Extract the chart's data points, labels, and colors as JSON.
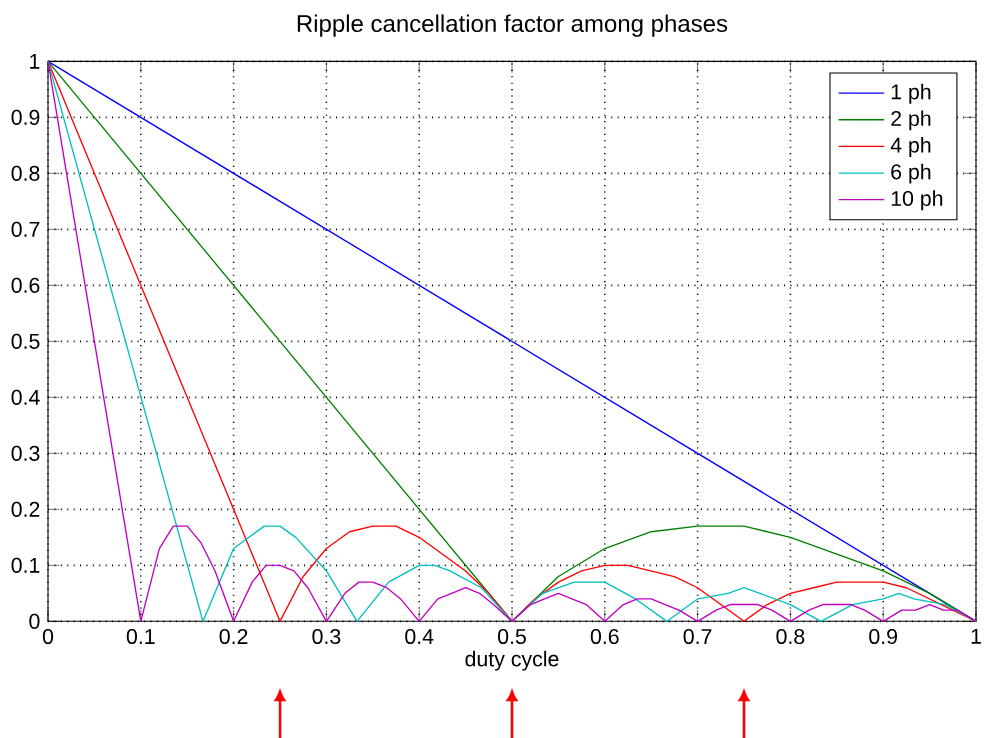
{
  "chart_data": {
    "type": "line",
    "title": "Ripple cancellation factor among phases",
    "xlabel": "duty cycle",
    "xlim": [
      0,
      1
    ],
    "ylim": [
      0,
      1
    ],
    "xticks": [
      0,
      0.1,
      0.2,
      0.3,
      0.4,
      0.5,
      0.6,
      0.7,
      0.8,
      0.9,
      1
    ],
    "yticks": [
      0,
      0.1,
      0.2,
      0.3,
      0.4,
      0.5,
      0.6,
      0.7,
      0.8,
      0.9,
      1
    ],
    "grid": true,
    "legend": "top right",
    "marker": "none",
    "line_style": "solid",
    "series": [
      {
        "name": "1 ph",
        "color": "#0000ff",
        "x": [
          0,
          1
        ],
        "values": [
          1,
          0
        ]
      },
      {
        "name": "2 ph",
        "color": "#008000",
        "x": [
          0,
          0.5,
          0.55,
          0.6,
          0.65,
          0.7,
          0.75,
          0.8,
          0.85,
          0.9,
          0.95,
          1
        ],
        "values": [
          1,
          0,
          0.08,
          0.13,
          0.16,
          0.17,
          0.17,
          0.15,
          0.12,
          0.09,
          0.05,
          0
        ]
      },
      {
        "name": "4 ph",
        "color": "#ff0000",
        "x": [
          0,
          0.25,
          0.275,
          0.3,
          0.325,
          0.35,
          0.375,
          0.4,
          0.425,
          0.45,
          0.475,
          0.5,
          0.525,
          0.55,
          0.575,
          0.6,
          0.625,
          0.65,
          0.675,
          0.7,
          0.725,
          0.75,
          0.775,
          0.8,
          0.825,
          0.85,
          0.875,
          0.9,
          0.925,
          0.95,
          0.975,
          1
        ],
        "values": [
          1,
          0,
          0.08,
          0.13,
          0.16,
          0.17,
          0.17,
          0.15,
          0.12,
          0.09,
          0.05,
          0,
          0.04,
          0.07,
          0.09,
          0.1,
          0.1,
          0.09,
          0.08,
          0.06,
          0.03,
          0,
          0.03,
          0.05,
          0.06,
          0.07,
          0.07,
          0.07,
          0.06,
          0.04,
          0.02,
          0
        ]
      },
      {
        "name": "6 ph",
        "color": "#00bfbf",
        "x": [
          0,
          0.167,
          0.2,
          0.233,
          0.25,
          0.267,
          0.3,
          0.333,
          0.367,
          0.4,
          0.417,
          0.433,
          0.467,
          0.5,
          0.533,
          0.567,
          0.583,
          0.6,
          0.633,
          0.667,
          0.7,
          0.733,
          0.75,
          0.767,
          0.8,
          0.833,
          0.867,
          0.9,
          0.917,
          0.933,
          0.967,
          1
        ],
        "values": [
          1,
          0,
          0.13,
          0.17,
          0.17,
          0.15,
          0.09,
          0,
          0.07,
          0.1,
          0.1,
          0.09,
          0.06,
          0,
          0.05,
          0.07,
          0.07,
          0.07,
          0.04,
          0,
          0.04,
          0.05,
          0.06,
          0.05,
          0.03,
          0,
          0.03,
          0.04,
          0.05,
          0.04,
          0.03,
          0
        ]
      },
      {
        "name": "10 ph",
        "color": "#bf00bf",
        "x": [
          0,
          0.1,
          0.12,
          0.135,
          0.15,
          0.165,
          0.18,
          0.2,
          0.22,
          0.235,
          0.25,
          0.265,
          0.28,
          0.3,
          0.32,
          0.335,
          0.35,
          0.365,
          0.38,
          0.4,
          0.42,
          0.435,
          0.45,
          0.465,
          0.48,
          0.5,
          0.52,
          0.535,
          0.55,
          0.565,
          0.58,
          0.6,
          0.62,
          0.635,
          0.65,
          0.665,
          0.68,
          0.7,
          0.72,
          0.735,
          0.75,
          0.765,
          0.78,
          0.8,
          0.82,
          0.835,
          0.85,
          0.865,
          0.88,
          0.9,
          0.92,
          0.935,
          0.95,
          0.965,
          0.98,
          1
        ],
        "values": [
          1,
          0,
          0.13,
          0.17,
          0.17,
          0.14,
          0.09,
          0,
          0.07,
          0.1,
          0.1,
          0.09,
          0.06,
          0,
          0.05,
          0.07,
          0.07,
          0.06,
          0.04,
          0,
          0.04,
          0.05,
          0.06,
          0.05,
          0.03,
          0,
          0.03,
          0.04,
          0.05,
          0.04,
          0.03,
          0,
          0.03,
          0.04,
          0.04,
          0.03,
          0.02,
          0,
          0.02,
          0.03,
          0.03,
          0.03,
          0.02,
          0,
          0.02,
          0.03,
          0.03,
          0.03,
          0.02,
          0,
          0.02,
          0.02,
          0.03,
          0.02,
          0.02,
          0
        ]
      }
    ]
  }
}
